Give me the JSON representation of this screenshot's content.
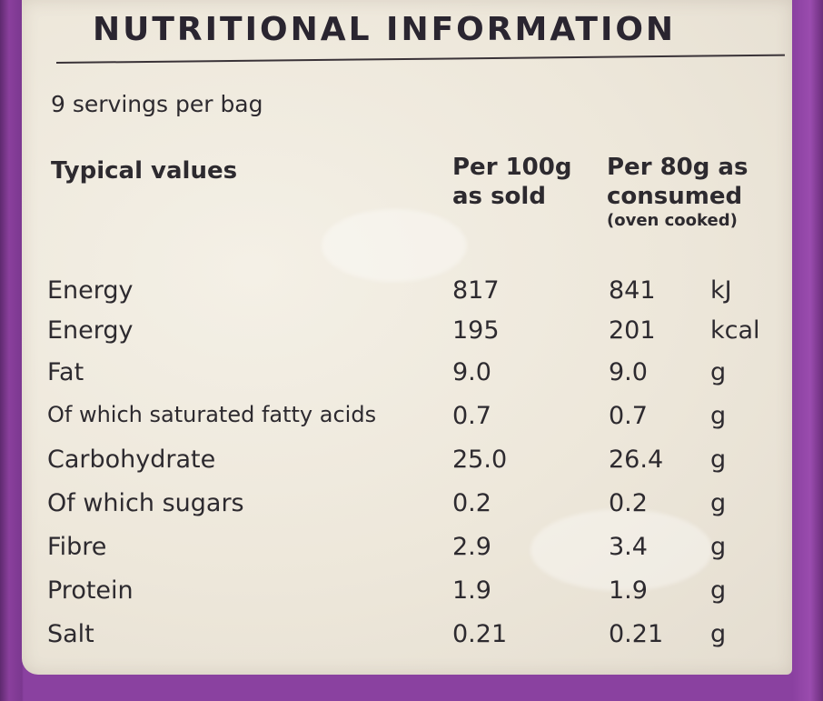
{
  "title": "NUTRITIONAL INFORMATION",
  "servings": "9 servings per bag",
  "headers": {
    "typical": "Typical values",
    "col1_line1": "Per 100g",
    "col1_line2": "as sold",
    "col2_line1": "Per 80g as",
    "col2_line2": "consumed",
    "col2_note": "(oven cooked)"
  },
  "rows": [
    {
      "name": "Energy",
      "per100": "817",
      "per80": "841",
      "unit": "kJ"
    },
    {
      "name": "Energy",
      "per100": "195",
      "per80": "201",
      "unit": "kcal"
    },
    {
      "name": "Fat",
      "per100": "9.0",
      "per80": "9.0",
      "unit": "g"
    },
    {
      "name": "Of which saturated fatty acids",
      "per100": "0.7",
      "per80": "0.7",
      "unit": "g"
    },
    {
      "name": "Carbohydrate",
      "per100": "25.0",
      "per80": "26.4",
      "unit": "g"
    },
    {
      "name": "Of which sugars",
      "per100": "0.2",
      "per80": "0.2",
      "unit": "g"
    },
    {
      "name": "Fibre",
      "per100": "2.9",
      "per80": "3.4",
      "unit": "g"
    },
    {
      "name": "Protein",
      "per100": "1.9",
      "per80": "1.9",
      "unit": "g"
    },
    {
      "name": "Salt",
      "per100": "0.21",
      "per80": "0.21",
      "unit": "g"
    }
  ],
  "colors": {
    "bag": "#8a41a0",
    "label": "#efe9dc",
    "ink": "#2d2a2f"
  }
}
